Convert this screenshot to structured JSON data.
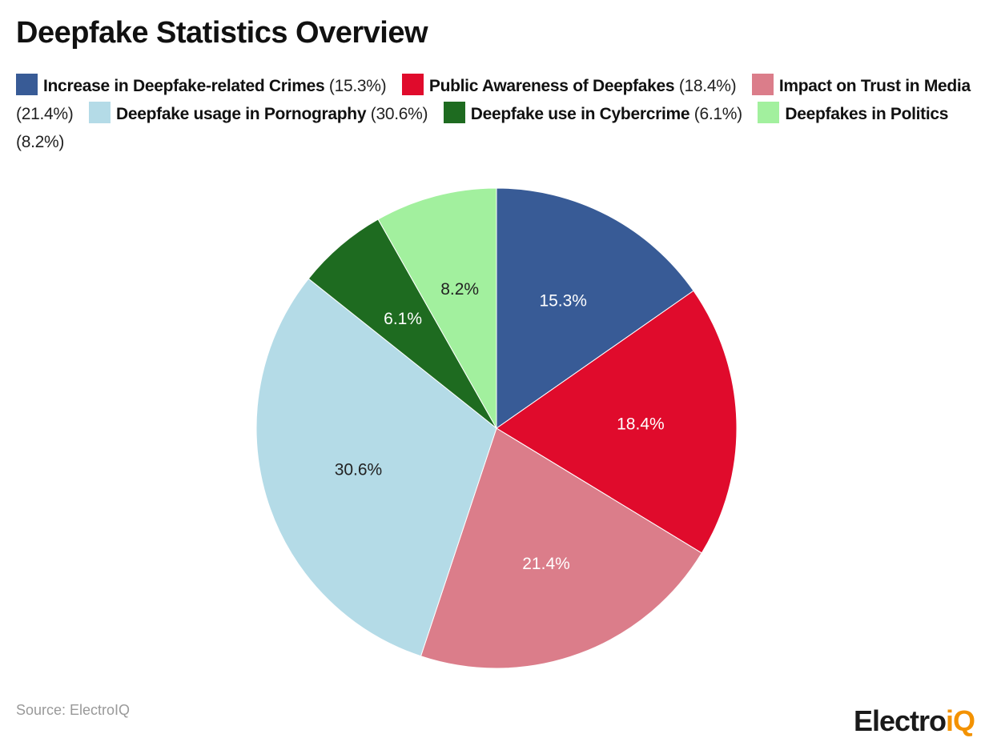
{
  "chart_data": {
    "type": "pie",
    "title": "Deepfake Statistics Overview",
    "legend_position": "top",
    "series": [
      {
        "name": "Increase in Deepfake-related Crimes",
        "value": 15.3,
        "label": "15.3%",
        "legend_value": "(15.3%)",
        "color": "#385b96",
        "label_color": "#ffffff"
      },
      {
        "name": "Public Awareness of Deepfakes",
        "value": 18.4,
        "label": "18.4%",
        "legend_value": "(18.4%)",
        "color": "#e00b2c",
        "label_color": "#ffffff"
      },
      {
        "name": "Impact on Trust in Media",
        "value": 21.4,
        "label": "21.4%",
        "legend_value": "(21.4%)",
        "color": "#db7d8a",
        "label_color": "#ffffff"
      },
      {
        "name": "Deepfake usage in Pornography",
        "value": 30.6,
        "label": "30.6%",
        "legend_value": "(30.6%)",
        "color": "#b4dbe7",
        "label_color": "#222222"
      },
      {
        "name": "Deepfake use in Cybercrime",
        "value": 6.1,
        "label": "6.1%",
        "legend_value": "(6.1%)",
        "color": "#1e6b20",
        "label_color": "#ffffff"
      },
      {
        "name": "Deepfakes in Politics",
        "value": 8.2,
        "label": "8.2%",
        "legend_value": "(8.2%)",
        "color": "#a2f09e",
        "label_color": "#222222"
      }
    ]
  },
  "source": "Source: ElectroIQ",
  "logo": {
    "main": "Electro",
    "accent": "iQ"
  }
}
